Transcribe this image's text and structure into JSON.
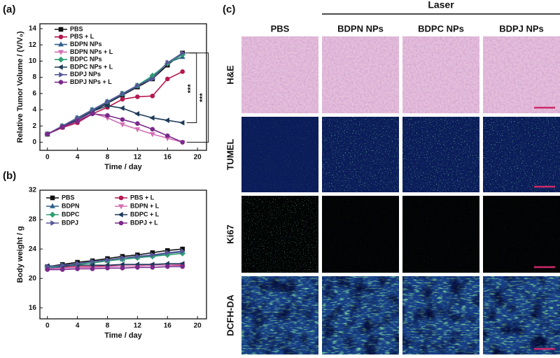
{
  "chart_data": [
    {
      "type": "line",
      "panel_label": "(a)",
      "x_label": "Time / day",
      "y_label": "Relative Tumor Volume / (V/V₀)",
      "x": [
        0,
        2,
        4,
        6,
        8,
        10,
        12,
        14,
        16,
        18
      ],
      "xlim": [
        -1,
        21.2
      ],
      "xticks": [
        0,
        4,
        8,
        12,
        16,
        20
      ],
      "ylim": [
        -1,
        14.6
      ],
      "yticks": [
        0,
        2,
        4,
        6,
        8,
        10,
        12,
        14
      ],
      "legend_columns": 1,
      "annotations": [
        "***",
        "***"
      ],
      "series": [
        {
          "name": "PBS",
          "color": "#111111",
          "marker": "square",
          "values": [
            1,
            1.9,
            2.8,
            3.8,
            4.8,
            5.8,
            6.8,
            7.8,
            9.5,
            11
          ]
        },
        {
          "name": "PBS + L",
          "color": "#b5174f",
          "marker": "circle",
          "values": [
            1,
            1.8,
            2.4,
            3.5,
            4.3,
            5.3,
            5.6,
            5.7,
            7.8,
            8.7
          ]
        },
        {
          "name": "BDPN NPs",
          "color": "#2f5f8a",
          "marker": "triangle-up",
          "values": [
            1,
            2,
            3,
            3.9,
            4.9,
            5.9,
            6.9,
            8,
            9.8,
            10.5
          ]
        },
        {
          "name": "BDPN NPs + L",
          "color": "#d36fb5",
          "marker": "triangle-down",
          "values": [
            1,
            1.9,
            2.7,
            3.6,
            3,
            2.2,
            1.6,
            1,
            0.5,
            0
          ]
        },
        {
          "name": "BDPC NPs",
          "color": "#2e9e73",
          "marker": "diamond",
          "values": [
            1,
            2,
            3,
            4,
            5,
            6,
            7,
            8.2,
            9.7,
            10.8
          ]
        },
        {
          "name": "BDPC NPs + L",
          "color": "#1d3a58",
          "marker": "triangle-left",
          "values": [
            1,
            1.9,
            2.8,
            3.8,
            4.5,
            4.2,
            3.5,
            3,
            2.7,
            2.4
          ]
        },
        {
          "name": "BDPJ NPs",
          "color": "#57579a",
          "marker": "triangle-right",
          "values": [
            1,
            2,
            3,
            4,
            5,
            6,
            7,
            7.8,
            9.8,
            11
          ]
        },
        {
          "name": "BDPJ NPs + L",
          "color": "#7b2a8c",
          "marker": "circle",
          "values": [
            1,
            1.9,
            2.6,
            3.5,
            3.3,
            2.8,
            2.3,
            1.6,
            0.8,
            0
          ]
        }
      ]
    },
    {
      "type": "line",
      "panel_label": "(b)",
      "x_label": "Time / day",
      "y_label": "Body weight / g",
      "x": [
        0,
        2,
        4,
        6,
        8,
        10,
        12,
        14,
        16,
        18
      ],
      "xlim": [
        -1,
        21.2
      ],
      "xticks": [
        0,
        4,
        8,
        12,
        16,
        20
      ],
      "ylim": [
        14.5,
        32
      ],
      "yticks": [
        16,
        20,
        24,
        28,
        32
      ],
      "legend_columns": 2,
      "series": [
        {
          "name": "PBS",
          "color": "#111111",
          "marker": "square",
          "values": [
            21.6,
            21.9,
            22.2,
            22.4,
            22.7,
            23,
            23.2,
            23.5,
            23.8,
            24
          ]
        },
        {
          "name": "PBS  + L",
          "color": "#b5174f",
          "marker": "circle",
          "values": [
            21.5,
            21.5,
            21.6,
            21.6,
            21.7,
            21.7,
            21.7,
            21.8,
            21.8,
            21.8
          ]
        },
        {
          "name": "BDPN",
          "color": "#2f5f8a",
          "marker": "triangle-up",
          "values": [
            21.4,
            21.6,
            21.9,
            22.1,
            22.4,
            22.6,
            22.9,
            23.1,
            23.4,
            23.6
          ]
        },
        {
          "name": "BDPN + L",
          "color": "#d36fb5",
          "marker": "triangle-down",
          "values": [
            21.3,
            21.4,
            21.5,
            21.5,
            21.6,
            21.7,
            21.7,
            21.8,
            21.8,
            21.9
          ]
        },
        {
          "name": "BDPC",
          "color": "#2e9e73",
          "marker": "diamond",
          "values": [
            21.5,
            21.7,
            21.9,
            22.1,
            22.4,
            22.6,
            22.8,
            23,
            23.2,
            23.4
          ]
        },
        {
          "name": "BDPC + L",
          "color": "#1d3a58",
          "marker": "triangle-left",
          "values": [
            21.7,
            21.7,
            21.8,
            21.8,
            21.8,
            21.9,
            21.9,
            21.9,
            22,
            22
          ]
        },
        {
          "name": "BDPJ",
          "color": "#57579a",
          "marker": "triangle-right",
          "values": [
            21.6,
            21.8,
            22,
            22.3,
            22.5,
            22.8,
            23,
            23.2,
            23.5,
            23.7
          ]
        },
        {
          "name": "BDPJ + L",
          "color": "#7b2a8c",
          "marker": "circle",
          "values": [
            21.2,
            21.2,
            21.3,
            21.3,
            21.4,
            21.4,
            21.5,
            21.5,
            21.6,
            21.6
          ]
        }
      ]
    }
  ],
  "panel_c": {
    "panel_label": "(c)",
    "header": "Laser",
    "columns": [
      "PBS",
      "BDPN NPs",
      "BDPC NPs",
      "BDPJ NPs"
    ],
    "rows": [
      "H&E",
      "TUMEL",
      "Ki67",
      "DCFH-DA"
    ]
  }
}
